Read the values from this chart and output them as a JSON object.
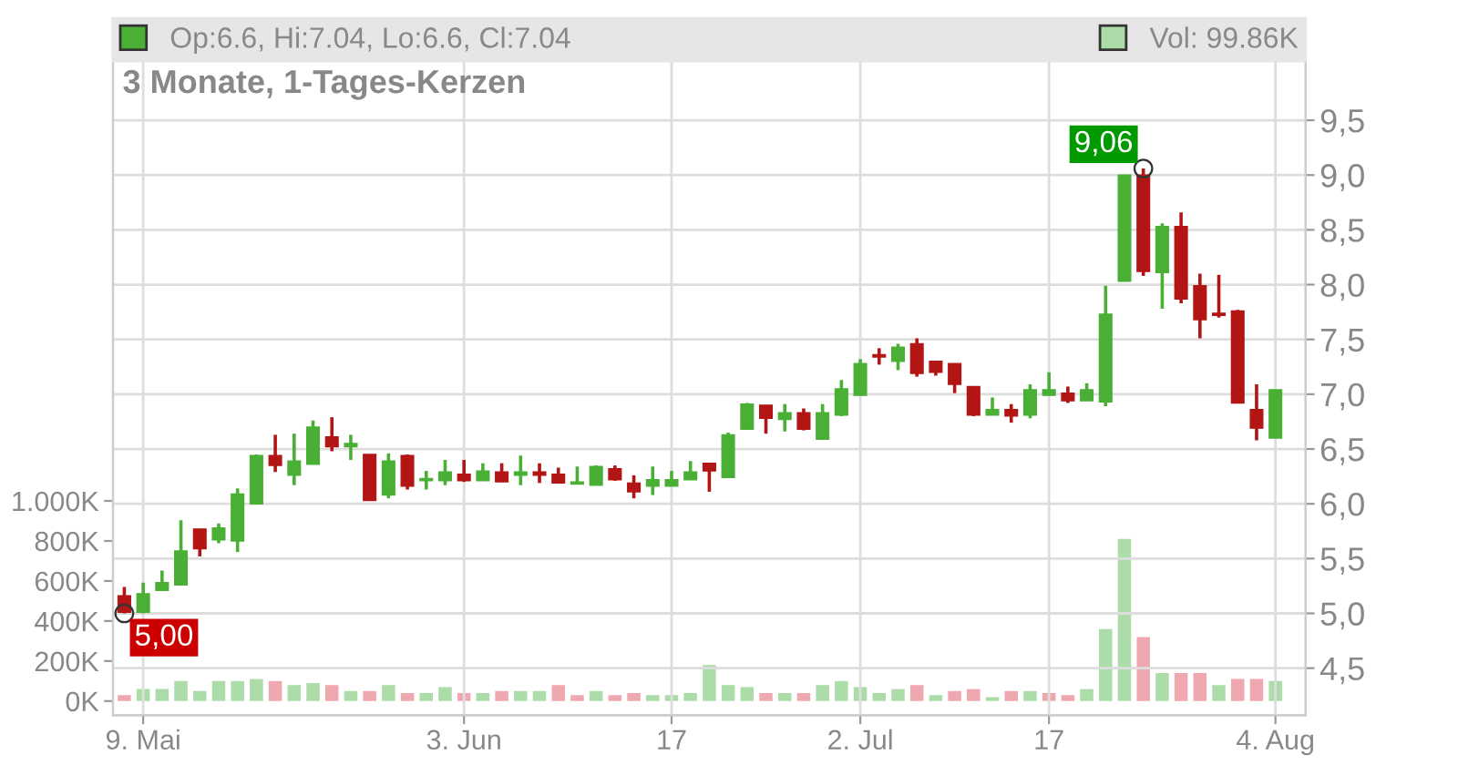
{
  "chart_data": {
    "type": "candlestick",
    "title": "3 Monate, 1-Tages-Kerzen",
    "categories": [
      null,
      "9. Mai",
      null,
      null,
      null,
      null,
      null,
      null,
      null,
      null,
      null,
      null,
      null,
      null,
      null,
      null,
      null,
      null,
      "3. Jun",
      null,
      null,
      null,
      null,
      null,
      null,
      null,
      null,
      null,
      null,
      "17",
      null,
      null,
      null,
      null,
      null,
      null,
      null,
      null,
      null,
      "2. Jul",
      null,
      null,
      null,
      null,
      null,
      null,
      null,
      null,
      null,
      "17",
      null,
      null,
      null,
      null,
      null,
      null,
      null,
      null,
      null,
      null,
      null,
      "4. Aug"
    ],
    "series": [
      {
        "type": "candlestick",
        "name": "Op:6.6, Hi:7.04, Lo:6.6, Cl:7.04",
        "color": "#4aaf35",
        "colors": [
          "#b31515",
          "#4aaf35",
          "#4aaf35",
          "#4aaf35",
          "#b31515",
          "#4aaf35",
          "#4aaf35",
          "#4aaf35",
          "#b31515",
          "#4aaf35",
          "#4aaf35",
          "#b31515",
          "#4aaf35",
          "#b31515",
          "#4aaf35",
          "#b31515",
          "#4aaf35",
          "#4aaf35",
          "#b31515",
          "#4aaf35",
          "#b31515",
          "#4aaf35",
          "#b31515",
          "#b31515",
          "#4aaf35",
          "#4aaf35",
          "#b31515",
          "#b31515",
          "#4aaf35",
          "#4aaf35",
          "#4aaf35",
          "#b31515",
          "#4aaf35",
          "#4aaf35",
          "#b31515",
          "#4aaf35",
          "#b31515",
          "#4aaf35",
          "#4aaf35",
          "#4aaf35",
          "#b31515",
          "#4aaf35",
          "#b31515",
          "#b31515",
          "#b31515",
          "#b31515",
          "#4aaf35",
          "#b31515",
          "#4aaf35",
          "#4aaf35",
          "#b31515",
          "#4aaf35",
          "#4aaf35",
          "#4aaf35",
          "#b31515",
          "#4aaf35",
          "#b31515",
          "#b31515",
          "#b31515",
          "#b31515",
          "#b31515",
          "#4aaf35"
        ],
        "ohlc": [
          [
            5.16,
            5.24,
            5.0,
            5.01
          ],
          [
            5.01,
            5.28,
            5.0,
            5.18
          ],
          [
            5.21,
            5.39,
            5.21,
            5.28
          ],
          [
            5.26,
            5.85,
            5.26,
            5.57
          ],
          [
            5.77,
            5.77,
            5.52,
            5.59
          ],
          [
            5.67,
            5.82,
            5.64,
            5.78
          ],
          [
            5.66,
            6.14,
            5.56,
            6.09
          ],
          [
            6.0,
            6.45,
            6.0,
            6.44
          ],
          [
            6.44,
            6.63,
            6.29,
            6.35
          ],
          [
            6.26,
            6.64,
            6.17,
            6.39
          ],
          [
            6.36,
            6.76,
            6.36,
            6.7
          ],
          [
            6.61,
            6.79,
            6.48,
            6.52
          ],
          [
            6.52,
            6.63,
            6.4,
            6.55
          ],
          [
            6.45,
            6.45,
            6.03,
            6.03
          ],
          [
            6.08,
            6.46,
            6.05,
            6.39
          ],
          [
            6.44,
            6.45,
            6.13,
            6.16
          ],
          [
            6.21,
            6.3,
            6.13,
            6.23
          ],
          [
            6.21,
            6.4,
            6.17,
            6.29
          ],
          [
            6.27,
            6.4,
            6.2,
            6.21
          ],
          [
            6.21,
            6.37,
            6.21,
            6.3
          ],
          [
            6.29,
            6.37,
            6.2,
            6.2
          ],
          [
            6.26,
            6.44,
            6.17,
            6.29
          ],
          [
            6.29,
            6.37,
            6.19,
            6.26
          ],
          [
            6.27,
            6.33,
            6.19,
            6.19
          ],
          [
            6.18,
            6.34,
            6.18,
            6.2
          ],
          [
            6.17,
            6.35,
            6.17,
            6.34
          ],
          [
            6.32,
            6.35,
            6.21,
            6.22
          ],
          [
            6.19,
            6.26,
            6.05,
            6.11
          ],
          [
            6.16,
            6.34,
            6.08,
            6.22
          ],
          [
            6.16,
            6.3,
            6.16,
            6.22
          ],
          [
            6.22,
            6.39,
            6.22,
            6.29
          ],
          [
            6.37,
            6.37,
            6.11,
            6.3
          ],
          [
            6.24,
            6.65,
            6.24,
            6.63
          ],
          [
            6.68,
            6.92,
            6.68,
            6.91
          ],
          [
            6.9,
            6.9,
            6.64,
            6.78
          ],
          [
            6.77,
            6.91,
            6.66,
            6.83
          ],
          [
            6.83,
            6.87,
            6.67,
            6.68
          ],
          [
            6.59,
            6.91,
            6.59,
            6.83
          ],
          [
            6.81,
            7.13,
            6.8,
            7.05
          ],
          [
            6.99,
            7.32,
            6.99,
            7.28
          ],
          [
            7.36,
            7.42,
            7.27,
            7.34
          ],
          [
            7.3,
            7.46,
            7.22,
            7.43
          ],
          [
            7.46,
            7.51,
            7.16,
            7.19
          ],
          [
            7.3,
            7.3,
            7.17,
            7.2
          ],
          [
            7.28,
            7.28,
            7.01,
            7.09
          ],
          [
            7.07,
            7.07,
            6.8,
            6.81
          ],
          [
            6.81,
            6.97,
            6.81,
            6.86
          ],
          [
            6.86,
            6.91,
            6.74,
            6.8
          ],
          [
            6.81,
            7.09,
            6.78,
            7.04
          ],
          [
            6.99,
            7.2,
            6.99,
            7.04
          ],
          [
            7.01,
            7.07,
            6.92,
            6.94
          ],
          [
            6.94,
            7.1,
            6.94,
            7.04
          ],
          [
            6.93,
            7.99,
            6.89,
            7.73
          ],
          [
            8.03,
            9.0,
            8.03,
            9.0
          ],
          [
            9.0,
            9.06,
            8.08,
            8.12
          ],
          [
            8.11,
            8.56,
            7.78,
            8.53
          ],
          [
            8.53,
            8.66,
            7.83,
            7.87
          ],
          [
            7.99,
            8.1,
            7.51,
            7.68
          ],
          [
            7.74,
            8.09,
            7.7,
            7.72
          ],
          [
            7.76,
            7.77,
            6.92,
            6.92
          ],
          [
            6.86,
            7.09,
            6.58,
            6.69
          ],
          [
            6.6,
            7.04,
            6.6,
            7.04
          ]
        ]
      },
      {
        "type": "bar",
        "name": "Vol: 99.86K",
        "color": "#acdca8",
        "axis": "y2",
        "colors": [
          "#f0a8b0",
          "#acdca8",
          "#acdca8",
          "#acdca8",
          "#acdca8",
          "#acdca8",
          "#acdca8",
          "#acdca8",
          "#f0a8b0",
          "#acdca8",
          "#acdca8",
          "#f0a8b0",
          "#acdca8",
          "#f0a8b0",
          "#acdca8",
          "#f0a8b0",
          "#acdca8",
          "#acdca8",
          "#f0a8b0",
          "#acdca8",
          "#f0a8b0",
          "#acdca8",
          "#acdca8",
          "#f0a8b0",
          "#f0a8b0",
          "#acdca8",
          "#f0a8b0",
          "#f0a8b0",
          "#acdca8",
          "#acdca8",
          "#acdca8",
          "#acdca8",
          "#acdca8",
          "#acdca8",
          "#f0a8b0",
          "#acdca8",
          "#f0a8b0",
          "#acdca8",
          "#acdca8",
          "#acdca8",
          "#acdca8",
          "#acdca8",
          "#f0a8b0",
          "#acdca8",
          "#f0a8b0",
          "#f0a8b0",
          "#acdca8",
          "#f0a8b0",
          "#acdca8",
          "#f0a8b0",
          "#f0a8b0",
          "#acdca8",
          "#acdca8",
          "#acdca8",
          "#f0a8b0",
          "#acdca8",
          "#f0a8b0",
          "#f0a8b0",
          "#acdca8",
          "#f0a8b0",
          "#f0a8b0",
          "#acdca8"
        ],
        "values": [
          30,
          60,
          60,
          100,
          50,
          100,
          100,
          110,
          100,
          80,
          90,
          80,
          50,
          50,
          80,
          40,
          40,
          70,
          40,
          40,
          50,
          50,
          50,
          80,
          30,
          50,
          30,
          40,
          30,
          30,
          40,
          180,
          80,
          70,
          40,
          40,
          40,
          80,
          100,
          70,
          40,
          60,
          80,
          30,
          50,
          60,
          20,
          50,
          50,
          40,
          30,
          60,
          360,
          810,
          320,
          140,
          140,
          140,
          80,
          110,
          110,
          99.86
        ]
      }
    ],
    "y2lim": [
      -71,
      3411
    ],
    "y2ticks": [
      {
        "value": 0,
        "label": "0K"
      },
      {
        "value": 200,
        "label": "200K"
      },
      {
        "value": 400,
        "label": "400K"
      },
      {
        "value": 600,
        "label": "600K"
      },
      {
        "value": 800,
        "label": "800K"
      },
      {
        "value": 1000,
        "label": "1.000K"
      }
    ],
    "ylim": [
      4.07,
      10.43
    ],
    "yticks": [
      {
        "value": 4.5,
        "label": "4,5"
      },
      {
        "value": 5.0,
        "label": "5,0"
      },
      {
        "value": 5.5,
        "label": "5,5"
      },
      {
        "value": 6.0,
        "label": "6,0"
      },
      {
        "value": 6.5,
        "label": "6,5"
      },
      {
        "value": 7.0,
        "label": "7,0"
      },
      {
        "value": 7.5,
        "label": "7,5"
      },
      {
        "value": 8.0,
        "label": "8,0"
      },
      {
        "value": 8.5,
        "label": "8,5"
      },
      {
        "value": 9.0,
        "label": "9,0"
      },
      {
        "value": 9.5,
        "label": "9,5"
      }
    ],
    "annotations": [
      "9,06",
      "5,00"
    ],
    "grid": true,
    "legend": "top left"
  }
}
